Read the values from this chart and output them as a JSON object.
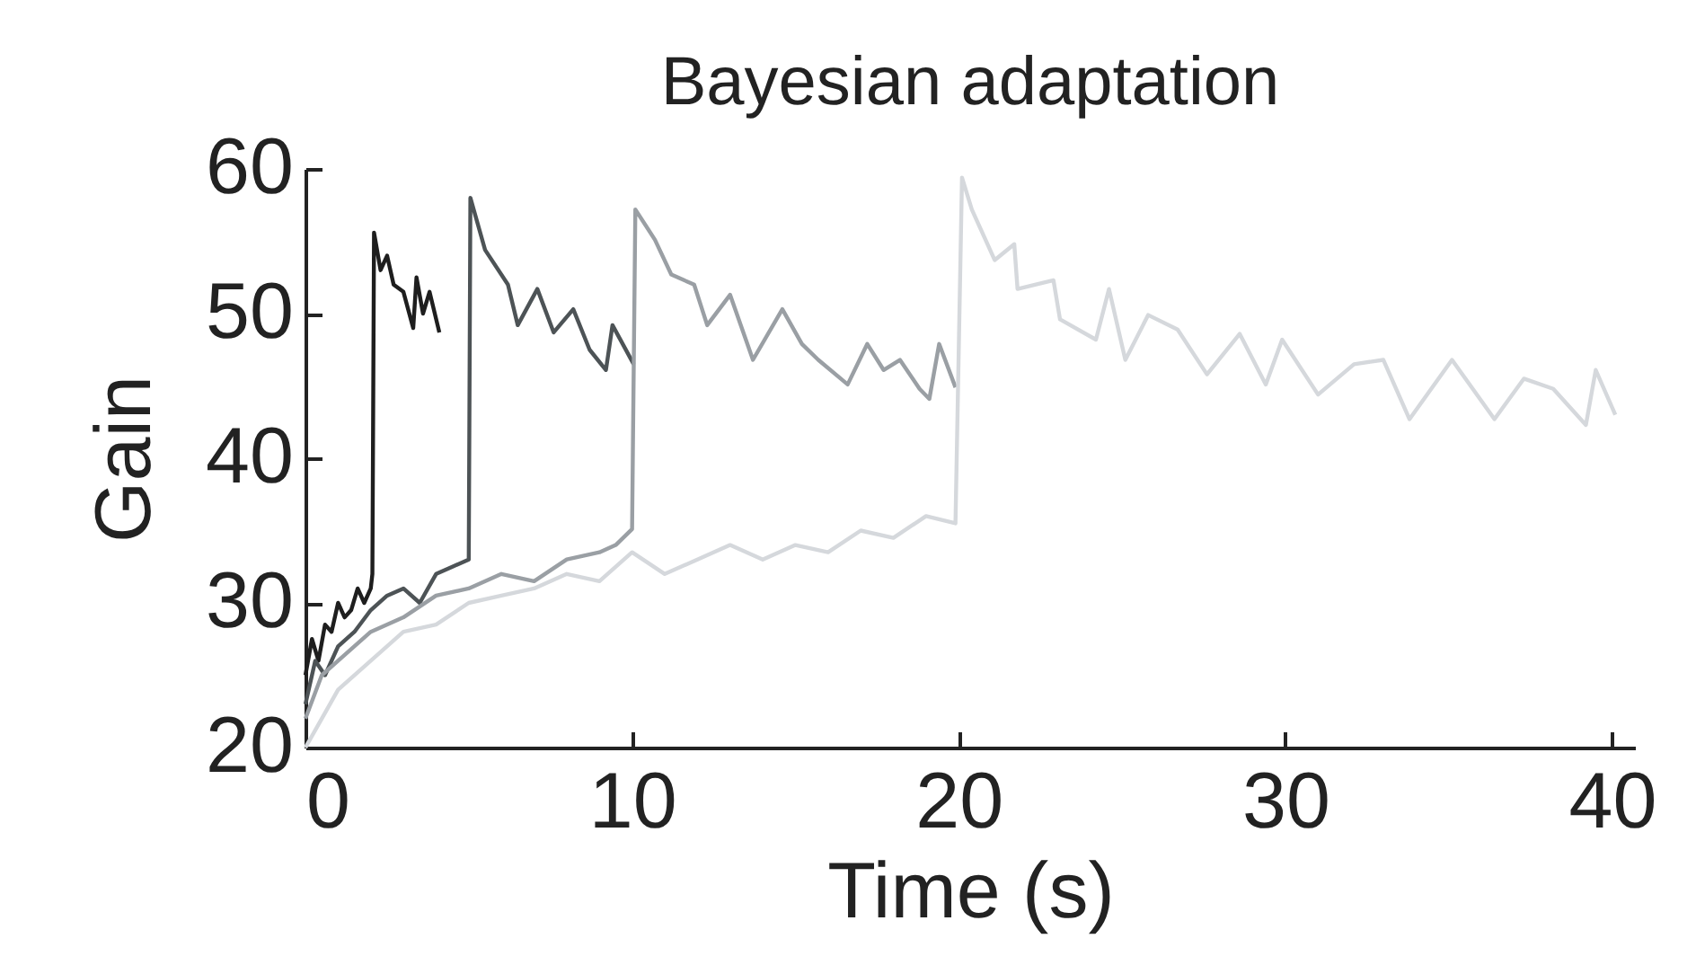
{
  "chart_data": {
    "type": "line",
    "title": "Bayesian adaptation",
    "xlabel": "Time (s)",
    "ylabel": "Gain",
    "xlim": [
      0,
      40.7
    ],
    "xticks": [
      0,
      10,
      20,
      30,
      40
    ],
    "ylim": [
      20,
      60
    ],
    "yticks": [
      20,
      30,
      40,
      50,
      60
    ],
    "grid": false,
    "legend": false,
    "line_style": "solid",
    "marker": "none",
    "series": [
      {
        "color": "#1e1e1e",
        "x": [
          0,
          0.2,
          0.4,
          0.6,
          0.8,
          1.0,
          1.2,
          1.4,
          1.6,
          1.8,
          2.0,
          2.05,
          2.1,
          2.3,
          2.5,
          2.7,
          3.0,
          3.3,
          3.4,
          3.6,
          3.8,
          4.1
        ],
        "values": [
          25,
          27.5,
          26,
          28.5,
          28,
          30,
          29,
          29.5,
          31,
          30,
          31,
          32,
          55.6,
          53,
          54,
          52,
          51.5,
          49,
          52.5,
          50,
          51.5,
          48.7
        ]
      },
      {
        "color": "#4d5356",
        "x": [
          0,
          0.3,
          0.6,
          1.0,
          1.5,
          2.0,
          2.5,
          3.0,
          3.5,
          4.0,
          4.5,
          5.0,
          5.05,
          5.5,
          6.2,
          6.5,
          7.1,
          7.6,
          8.2,
          8.7,
          9.2,
          9.4,
          10.05
        ],
        "values": [
          23,
          26,
          25,
          27,
          28,
          29.5,
          30.5,
          31,
          30,
          32,
          32.5,
          33,
          58,
          54.4,
          52,
          49.2,
          51.7,
          48.7,
          50.3,
          47.5,
          46.1,
          49.2,
          46.5
        ]
      },
      {
        "color": "#9a9fa4",
        "x": [
          0,
          0.5,
          1,
          2,
          3,
          4,
          5,
          6,
          7,
          8,
          9,
          9.5,
          10,
          10.1,
          10.7,
          11.2,
          11.9,
          12.3,
          13.0,
          13.7,
          14.6,
          15.2,
          15.7,
          16.6,
          17.2,
          17.7,
          18.2,
          18.8,
          19.1,
          19.4,
          19.9
        ],
        "values": [
          22,
          25,
          26,
          28,
          29,
          30.5,
          31,
          32,
          31.5,
          33,
          33.5,
          34,
          35.1,
          57.2,
          55.1,
          52.7,
          52,
          49.2,
          51.3,
          46.8,
          50.3,
          47.9,
          46.8,
          45.1,
          47.9,
          46.1,
          46.8,
          44.8,
          44.1,
          47.9,
          44.9
        ]
      },
      {
        "color": "#d5d8dc",
        "x": [
          0,
          0.5,
          1,
          2,
          3,
          4,
          5,
          6,
          7,
          8,
          9,
          10,
          11,
          12,
          13,
          14,
          15,
          16,
          17,
          18,
          19,
          19.9,
          20.1,
          20.4,
          21.1,
          21.7,
          21.8,
          22.9,
          23.1,
          24.2,
          24.6,
          25.1,
          25.8,
          26.7,
          27.6,
          28.6,
          29.4,
          29.9,
          31.0,
          32.1,
          33.0,
          33.8,
          35.1,
          36.4,
          37.3,
          38.2,
          39.2,
          39.5,
          40.1
        ],
        "values": [
          20,
          22,
          24,
          26,
          28,
          28.5,
          30,
          30.5,
          31,
          32,
          31.5,
          33.5,
          32,
          33,
          34,
          33,
          34,
          33.5,
          35,
          34.5,
          36,
          35.5,
          59.4,
          57.2,
          53.7,
          54.8,
          51.7,
          52.3,
          49.6,
          48.2,
          51.7,
          46.8,
          49.9,
          48.9,
          45.8,
          48.6,
          45.1,
          48.2,
          44.4,
          46.5,
          46.8,
          42.7,
          46.8,
          42.7,
          45.5,
          44.8,
          42.3,
          46.1,
          43
        ]
      }
    ]
  }
}
